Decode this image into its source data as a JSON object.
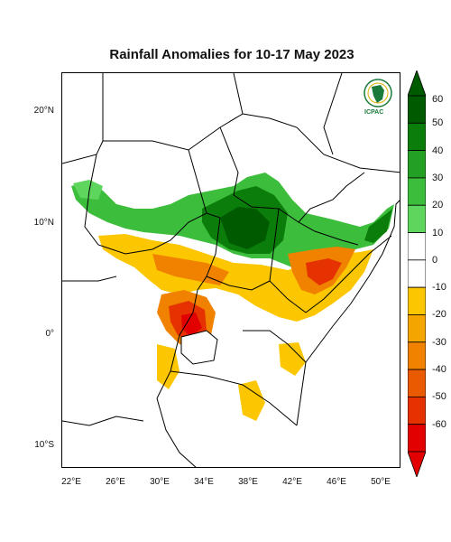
{
  "title": "Rainfall Anomalies for 10-17 May 2023",
  "lat_labels": [
    "20°N",
    "10°N",
    "0°",
    "10°S"
  ],
  "lon_labels": [
    "22°E",
    "26°E",
    "30°E",
    "34°E",
    "38°E",
    "42°E",
    "46°E",
    "50°E"
  ],
  "colorbar": {
    "labels": [
      "60",
      "50",
      "40",
      "30",
      "20",
      "10",
      "0",
      "-10",
      "-20",
      "-30",
      "-40",
      "-50",
      "-60"
    ],
    "colors": [
      "#005a00",
      "#0a7d0a",
      "#23a023",
      "#3cbd3c",
      "#5ed65e",
      "#ffffff",
      "#ffffff",
      "#fcc700",
      "#f5a500",
      "#f08200",
      "#ea5a00",
      "#e63200",
      "#e20000"
    ]
  },
  "logo": {
    "text": "ICPAC",
    "badge": "IGAD"
  }
}
